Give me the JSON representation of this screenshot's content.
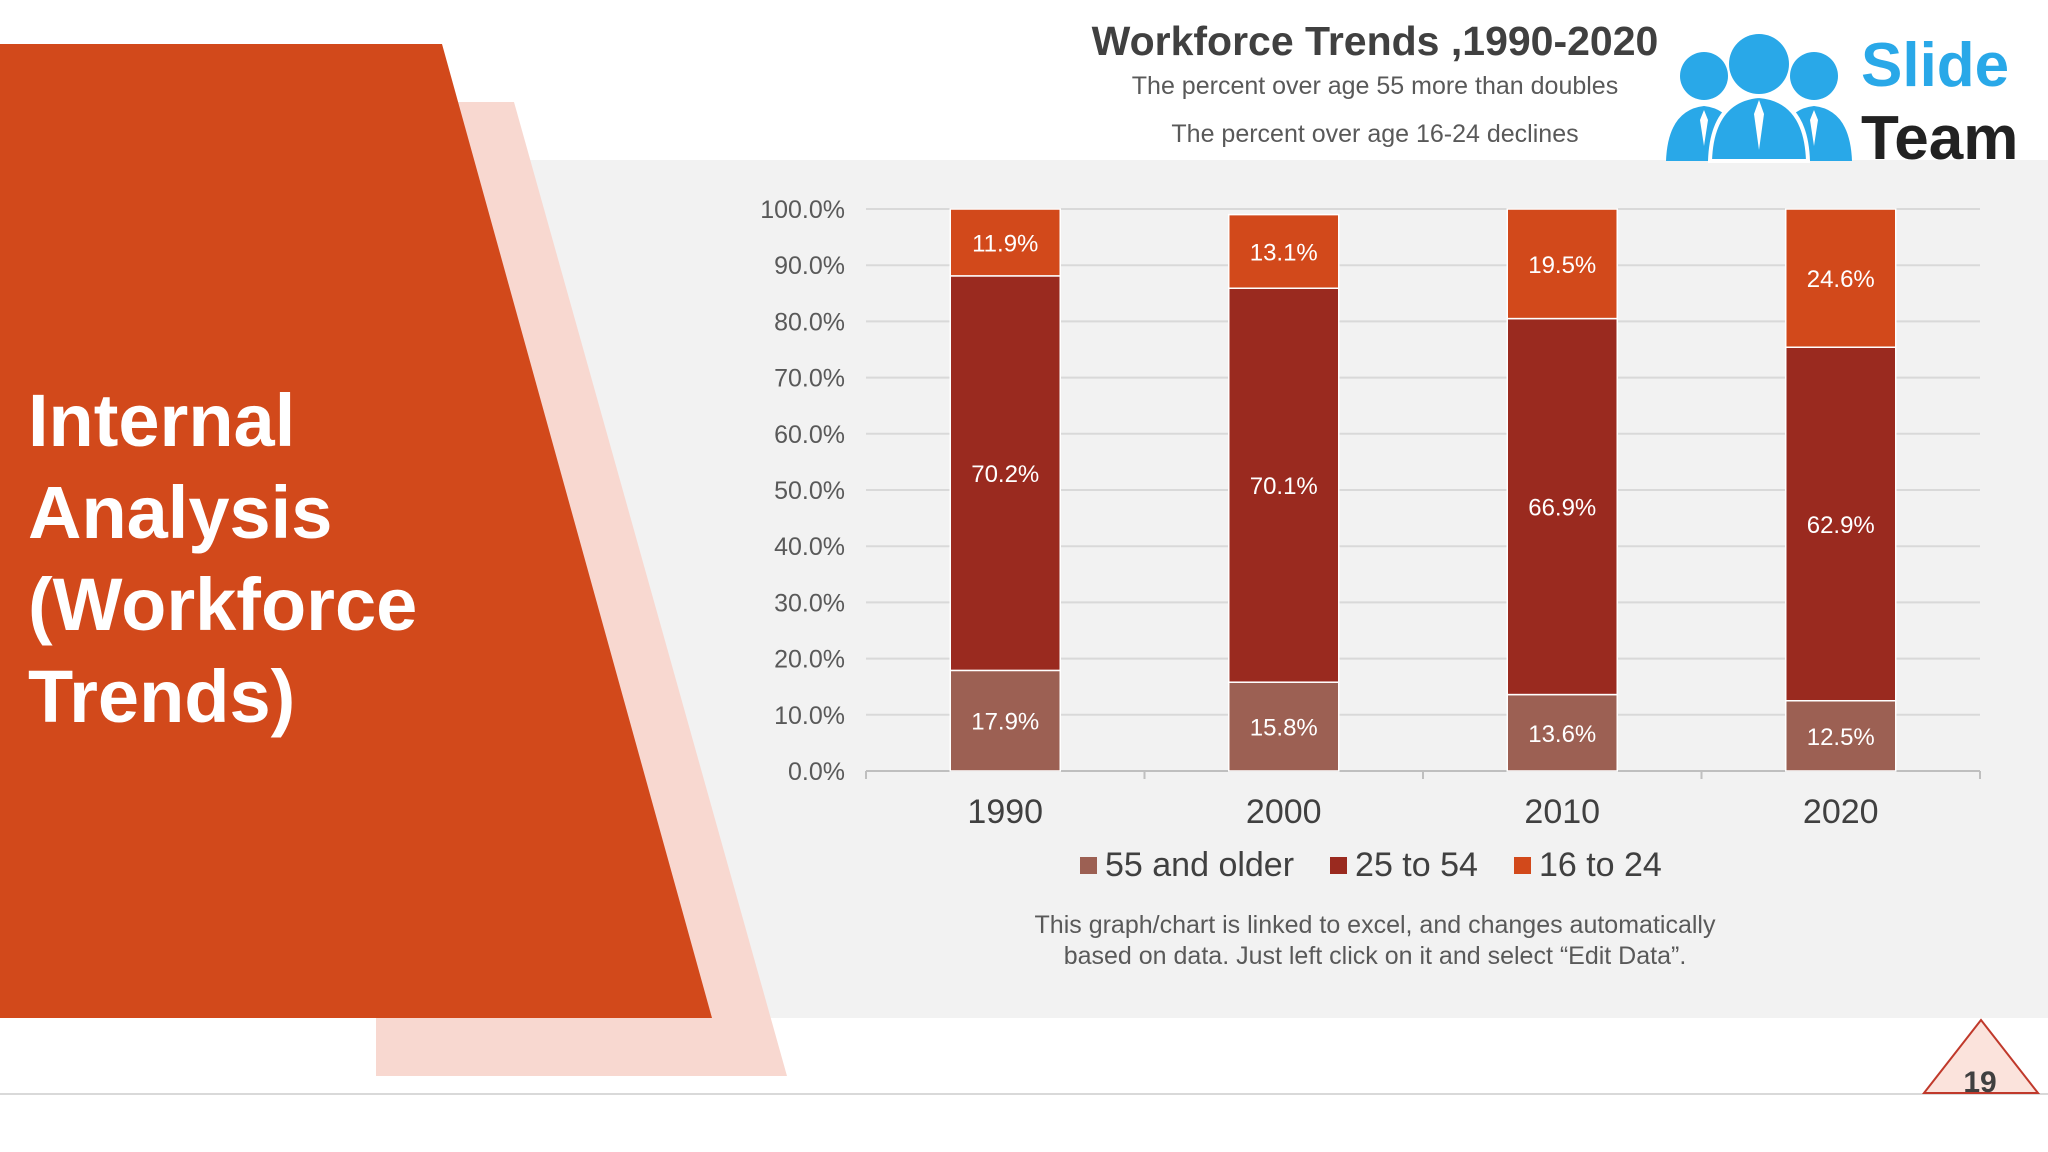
{
  "heading": {
    "line1": "Internal",
    "line2": "Analysis",
    "line3": "(Workforce",
    "line4": "Trends)"
  },
  "logo": {
    "word1": "Slide",
    "word2": "Team",
    "icon": "people-group-icon",
    "color": "#29a8e8"
  },
  "page_number": "19",
  "note": {
    "line1": "This graph/chart is linked to excel, and changes automatically",
    "line2": "based on data. Just left click on it and select “Edit Data”."
  },
  "colors": {
    "orange": "#d2491b",
    "pink": "#f8d8d0",
    "gray_band": "#f2f2f2",
    "s55": "#9c6053",
    "s25": "#9a2a1f",
    "s16": "#d2491b"
  },
  "chart_data": {
    "type": "bar",
    "stacked": true,
    "title": "Workforce Trends ,1990-2020",
    "subtitle1": "The percent over age 55 more than doubles",
    "subtitle2": "The percent over age 16-24 declines",
    "categories": [
      "1990",
      "2000",
      "2010",
      "2020"
    ],
    "series": [
      {
        "name": "55 and older",
        "values": [
          17.9,
          15.8,
          13.6,
          12.5
        ],
        "labels": [
          "17.9%",
          "15.8%",
          "13.6%",
          "12.5%"
        ],
        "color": "#9c6053"
      },
      {
        "name": "25 to 54",
        "values": [
          70.2,
          70.1,
          66.9,
          62.9
        ],
        "labels": [
          "70.2%",
          "70.1%",
          "66.9%",
          "62.9%"
        ],
        "color": "#9a2a1f"
      },
      {
        "name": "16 to 24",
        "values": [
          11.9,
          13.1,
          19.5,
          24.6
        ],
        "labels": [
          "11.9%",
          "13.1%",
          "19.5%",
          "24.6%"
        ],
        "color": "#d2491b"
      }
    ],
    "yticks": [
      "0.0%",
      "10.0%",
      "20.0%",
      "30.0%",
      "40.0%",
      "50.0%",
      "60.0%",
      "70.0%",
      "80.0%",
      "90.0%",
      "100.0%"
    ],
    "ylim": [
      0,
      100
    ],
    "grid": true,
    "legend_position": "bottom"
  }
}
